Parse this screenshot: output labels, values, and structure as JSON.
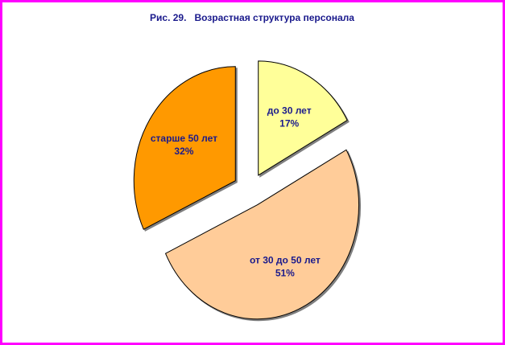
{
  "chart_data": {
    "type": "pie",
    "title": "Рис. 29.   Возрастная структура персонала",
    "exploded": true,
    "slices": [
      {
        "label": "до 30 лет",
        "value": 17,
        "value_label": "17%",
        "color": "#ffff99"
      },
      {
        "label": "от 30 до 50 лет",
        "value": 51,
        "value_label": "51%",
        "color": "#ffcc99"
      },
      {
        "label": "старше 50 лет",
        "value": 32,
        "value_label": "32%",
        "color": "#ff9900"
      }
    ],
    "legend": "none"
  }
}
